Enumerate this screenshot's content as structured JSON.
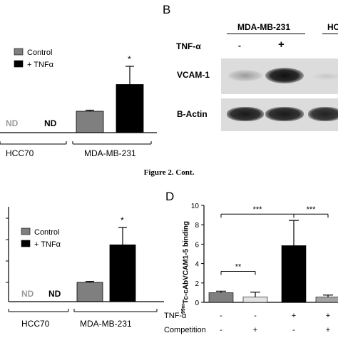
{
  "figure_caption": "Figure 2. Cont.",
  "panel_B": {
    "letter": "B",
    "cell_line_1": "MDA-MB-231",
    "cell_line_2_partial": "HC",
    "tnf_label": "TNF-α",
    "tnf_signs": [
      "-",
      "+"
    ],
    "rows": [
      "VCAM-1",
      "B-Actin"
    ]
  },
  "panel_D": {
    "letter": "D",
    "ylabel_sup": "99m",
    "ylabel_main": "Tc-cAbVCAM1-5 binding",
    "row_labels": [
      "TNF-α",
      "Competition"
    ],
    "tnf_signs": [
      "-",
      "-",
      "+",
      "+"
    ],
    "competition_signs": [
      "-",
      "+",
      "-",
      "+"
    ],
    "sig_marks": [
      "**",
      "***",
      "***"
    ]
  },
  "chart_data": [
    {
      "type": "bar",
      "title": "",
      "legend": [
        "Control",
        "+ TNFα"
      ],
      "legend_position": "top-left",
      "groups": [
        "HCC70",
        "MDA-MB-231"
      ],
      "nd_labels": [
        "ND",
        "ND"
      ],
      "series": [
        {
          "name": "Control",
          "values": [
            null,
            1.0
          ],
          "err": [
            null,
            0.05
          ],
          "color": "#7f7f7f"
        },
        {
          "name": "+ TNFα",
          "values": [
            null,
            2.25
          ],
          "err": [
            null,
            0.85
          ],
          "color": "#000000"
        }
      ],
      "significance": "*"
    },
    {
      "type": "bar",
      "title": "",
      "legend": [
        "Control",
        "+ TNFα"
      ],
      "legend_position": "top-left",
      "groups": [
        "HCC70",
        "MDA-MB-231"
      ],
      "nd_labels": [
        "ND",
        "ND"
      ],
      "series": [
        {
          "name": "Control",
          "values": [
            null,
            1.0
          ],
          "err": [
            null,
            0.05
          ],
          "color": "#7f7f7f"
        },
        {
          "name": "+ TNFα",
          "values": [
            null,
            2.95
          ],
          "err": [
            null,
            0.9
          ],
          "color": "#000000"
        }
      ],
      "significance": "*"
    },
    {
      "type": "bar",
      "title": "",
      "xlabel": "",
      "ylabel": "99mTc-cAbVCAM1-5 binding",
      "ylim": [
        0,
        10
      ],
      "yticks": [
        0,
        2,
        4,
        6,
        8,
        10
      ],
      "categories": [
        "TNF- / Comp-",
        "TNF- / Comp+",
        "TNF+ / Comp-",
        "TNF+ / Comp+"
      ],
      "values": [
        1.0,
        0.55,
        5.85,
        0.55
      ],
      "err": [
        0.15,
        0.5,
        2.6,
        0.2
      ],
      "colors": [
        "#7f7f7f",
        "#e3e3e3",
        "#000000",
        "#a3a3a3"
      ]
    }
  ]
}
